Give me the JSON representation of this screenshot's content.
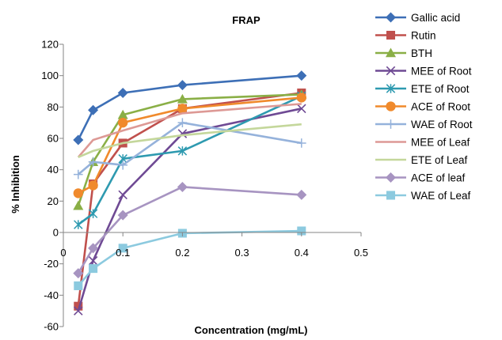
{
  "chart_data": {
    "type": "line",
    "title": "FRAP",
    "xlabel": "Concentration (mg/mL)",
    "ylabel": "% Inhibition",
    "xlim": [
      0,
      0.5
    ],
    "ylim": [
      -60,
      120
    ],
    "x_ticks": [
      "0",
      "0.1",
      "0.2",
      "0.3",
      "0.4",
      "0.5"
    ],
    "y_ticks": [
      "-60",
      "-40",
      "-20",
      "0",
      "20",
      "40",
      "60",
      "80",
      "100",
      "120"
    ],
    "grid": false,
    "legend_position": "right",
    "x": [
      0.025,
      0.05,
      0.1,
      0.2,
      0.4
    ],
    "series": [
      {
        "name": "Gallic acid",
        "color": "#3D6FB6",
        "marker": "diamond",
        "values": [
          59,
          78,
          89,
          94,
          100
        ]
      },
      {
        "name": "Rutin",
        "color": "#C0504D",
        "marker": "square",
        "values": [
          -47,
          31,
          57,
          79,
          89
        ]
      },
      {
        "name": "BTH",
        "color": "#8AAF46",
        "marker": "triangle",
        "values": [
          17,
          45,
          75,
          85,
          88
        ]
      },
      {
        "name": "MEE of Root",
        "color": "#6F4A94",
        "marker": "x",
        "values": [
          -50,
          -18,
          24,
          63,
          79
        ]
      },
      {
        "name": "ETE of Root",
        "color": "#2E9AB0",
        "marker": "star",
        "values": [
          5,
          12,
          47,
          52,
          87
        ]
      },
      {
        "name": "ACE of Root",
        "color": "#F08A2C",
        "marker": "circle",
        "values": [
          25,
          30,
          70,
          79,
          86
        ]
      },
      {
        "name": "WAE of Root",
        "color": "#95B2DB",
        "marker": "plus",
        "values": [
          37,
          45,
          43,
          70,
          57
        ]
      },
      {
        "name": "MEE of Leaf",
        "color": "#DD9995",
        "marker": "none",
        "values": [
          48,
          59,
          65,
          76,
          82
        ]
      },
      {
        "name": "ETE of Leaf",
        "color": "#C4D79B",
        "marker": "none",
        "values": [
          48,
          52,
          57,
          62,
          69
        ]
      },
      {
        "name": "ACE of leaf",
        "color": "#A794C1",
        "marker": "diamond",
        "values": [
          -26,
          -10,
          11,
          29,
          24
        ]
      },
      {
        "name": "WAE of Leaf",
        "color": "#8CCADF",
        "marker": "square",
        "values": [
          -34,
          -23,
          -10,
          -0.5,
          1
        ]
      }
    ]
  }
}
